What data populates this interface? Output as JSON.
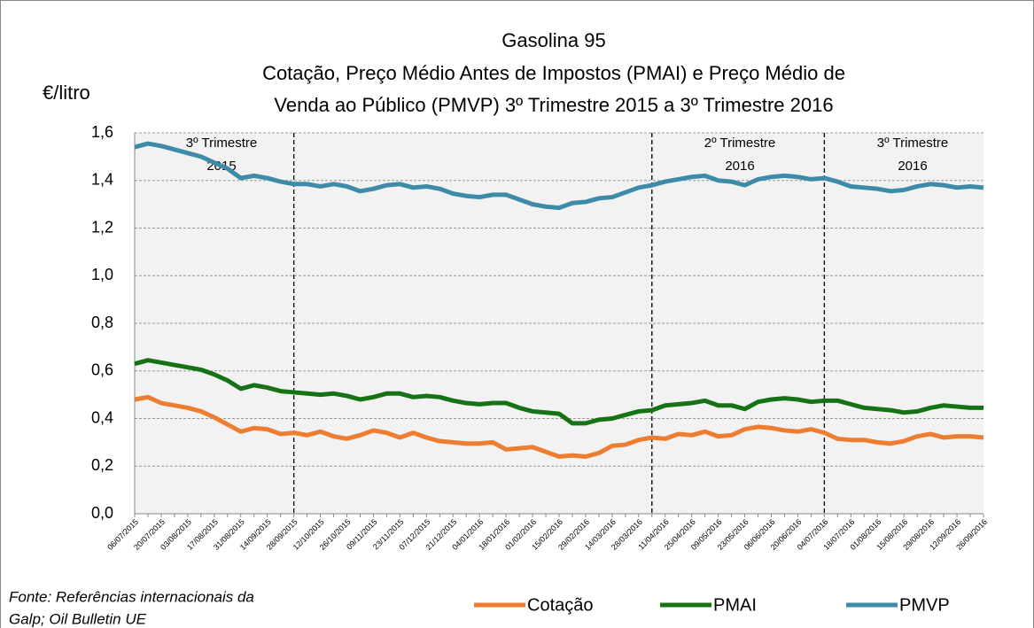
{
  "chart_data": {
    "type": "line",
    "title": [
      "Gasolina 95",
      "Cotação, Preço  Médio Antes de Impostos  (PMAI) e Preço  Médio de",
      "Venda ao Público (PMVP) 3º Trimestre 2015 a 3º Trimestre 2016"
    ],
    "y_axis_label": "€/litro",
    "source": [
      "Fonte: Referências internacionais da",
      "Galp; Oil Bulletin UE"
    ],
    "annotations": [
      [
        "3º Trimestre",
        "2015"
      ],
      [
        "2º Trimestre",
        "2016"
      ],
      [
        "3º Trimestre",
        "2016"
      ]
    ],
    "categories": [
      "06/07/2015",
      null,
      "20/07/2015",
      null,
      "03/08/2015",
      null,
      "17/08/2015",
      null,
      "31/08/2015",
      null,
      "14/09/2015",
      null,
      "28/09/2015",
      null,
      "12/10/2015",
      null,
      "26/10/2015",
      null,
      "09/11/2015",
      null,
      "23/11/2015",
      null,
      "07/12/2015",
      null,
      "21/12/2015",
      null,
      "04/01/2016",
      null,
      "18/01/2016",
      null,
      "01/02/2016",
      null,
      "15/02/2016",
      null,
      "29/02/2016",
      null,
      "14/03/2016",
      null,
      "28/03/2016",
      null,
      "11/04/2016",
      null,
      "25/04/2016",
      null,
      "09/05/2016",
      null,
      "23/05/2016",
      null,
      "06/06/2016",
      null,
      "20/06/2016",
      null,
      "04/07/2016",
      null,
      "18/07/2016",
      null,
      "01/08/2016",
      null,
      "15/08/2016",
      null,
      "29/08/2016",
      null,
      "12/09/2016",
      null,
      "26/09/2016"
    ],
    "series": [
      {
        "name": "Cotação",
        "color": "#ed7d31",
        "values": [
          0.48,
          0.49,
          0.465,
          0.455,
          0.445,
          0.43,
          0.405,
          0.375,
          0.345,
          0.36,
          0.355,
          0.335,
          0.34,
          0.33,
          0.345,
          0.325,
          0.315,
          0.33,
          0.35,
          0.34,
          0.32,
          0.34,
          0.32,
          0.305,
          0.3,
          0.295,
          0.295,
          0.3,
          0.27,
          0.275,
          0.28,
          0.26,
          0.24,
          0.245,
          0.24,
          0.255,
          0.285,
          0.29,
          0.31,
          0.32,
          0.315,
          0.335,
          0.33,
          0.345,
          0.325,
          0.33,
          0.355,
          0.365,
          0.36,
          0.35,
          0.345,
          0.355,
          0.34,
          0.315,
          0.31,
          0.31,
          0.3,
          0.295,
          0.305,
          0.325,
          0.335,
          0.32,
          0.325,
          0.325,
          0.32
        ]
      },
      {
        "name": "PMAI",
        "color": "#157315",
        "values": [
          0.63,
          0.645,
          0.635,
          0.625,
          0.615,
          0.605,
          0.585,
          0.56,
          0.525,
          0.54,
          0.53,
          0.515,
          0.51,
          0.505,
          0.5,
          0.505,
          0.495,
          0.48,
          0.49,
          0.505,
          0.505,
          0.49,
          0.495,
          0.49,
          0.475,
          0.465,
          0.46,
          0.465,
          0.465,
          0.445,
          0.43,
          0.425,
          0.42,
          0.38,
          0.38,
          0.395,
          0.4,
          0.415,
          0.43,
          0.435,
          0.455,
          0.46,
          0.465,
          0.475,
          0.455,
          0.455,
          0.44,
          0.47,
          0.48,
          0.485,
          0.48,
          0.47,
          0.475,
          0.475,
          0.46,
          0.445,
          0.44,
          0.435,
          0.425,
          0.43,
          0.445,
          0.455,
          0.45,
          0.445,
          0.445
        ]
      },
      {
        "name": "PMVP",
        "color": "#3d8ba8",
        "values": [
          1.54,
          1.555,
          1.545,
          1.53,
          1.515,
          1.5,
          1.475,
          1.45,
          1.41,
          1.42,
          1.41,
          1.395,
          1.385,
          1.385,
          1.375,
          1.385,
          1.375,
          1.355,
          1.365,
          1.38,
          1.385,
          1.37,
          1.375,
          1.365,
          1.345,
          1.335,
          1.33,
          1.34,
          1.34,
          1.32,
          1.3,
          1.29,
          1.285,
          1.305,
          1.31,
          1.325,
          1.33,
          1.35,
          1.37,
          1.38,
          1.395,
          1.405,
          1.415,
          1.42,
          1.4,
          1.395,
          1.38,
          1.405,
          1.415,
          1.42,
          1.415,
          1.405,
          1.41,
          1.395,
          1.375,
          1.37,
          1.365,
          1.355,
          1.36,
          1.375,
          1.385,
          1.38,
          1.37,
          1.375,
          1.37
        ]
      }
    ],
    "ylim": [
      0,
      1.6
    ],
    "yticks": [
      {
        "value": 0,
        "label": "0,0"
      },
      {
        "value": 0.2,
        "label": "0,2"
      },
      {
        "value": 0.4,
        "label": "0,4"
      },
      {
        "value": 0.6,
        "label": "0,6"
      },
      {
        "value": 0.8,
        "label": "0,8"
      },
      {
        "value": 1.0,
        "label": "1,0"
      },
      {
        "value": 1.2,
        "label": "1,2"
      },
      {
        "value": 1.4,
        "label": "1,4"
      },
      {
        "value": 1.6,
        "label": "1,6"
      }
    ],
    "grid": true
  }
}
